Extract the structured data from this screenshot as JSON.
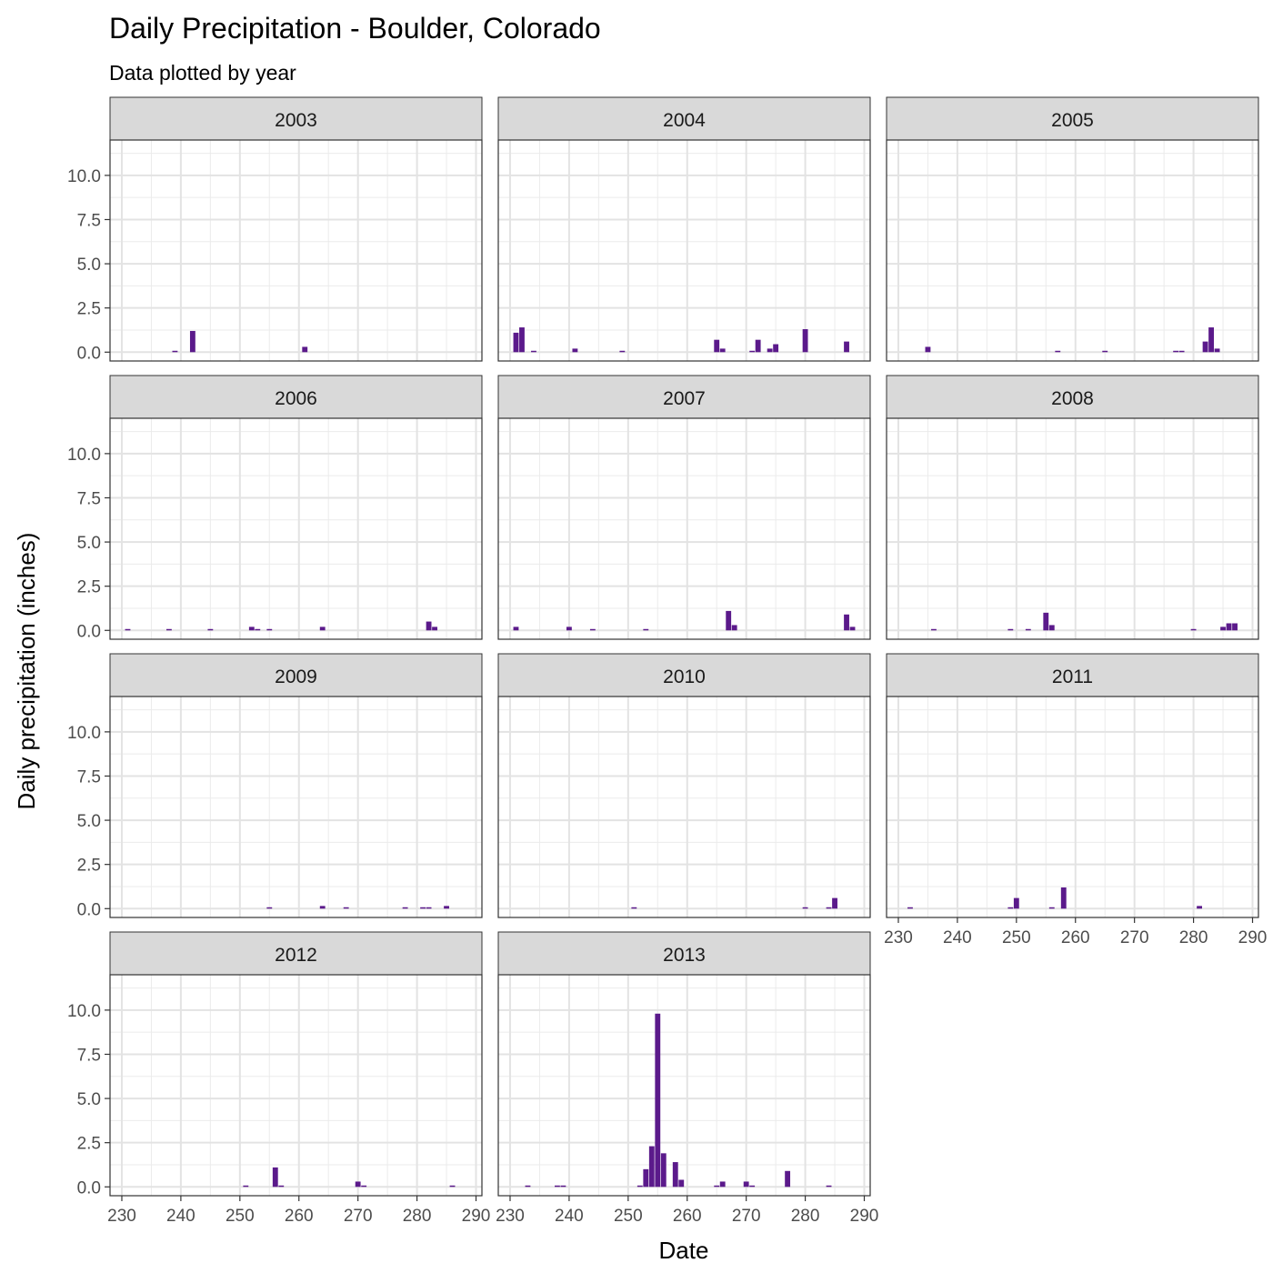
{
  "chart_data": {
    "type": "bar",
    "title": "Daily Precipitation - Boulder, Colorado",
    "subtitle": "Data plotted by year",
    "xlabel": "Date",
    "ylabel": "Daily precipitation (inches)",
    "xlim": [
      228,
      291
    ],
    "ylim": [
      -0.5,
      12
    ],
    "x_ticks": [
      230,
      240,
      250,
      260,
      270,
      280,
      290
    ],
    "y_ticks": [
      0.0,
      2.5,
      5.0,
      7.5,
      10.0
    ],
    "y_tick_labels": [
      "0.0",
      "2.5",
      "5.0",
      "7.5",
      "10.0"
    ],
    "grid": true,
    "facet_columns": 3,
    "bar_color": "#5b1a8b",
    "facets": [
      {
        "name": "2003",
        "bars": [
          [
            239,
            0.05
          ],
          [
            242,
            1.2
          ],
          [
            261,
            0.3
          ]
        ]
      },
      {
        "name": "2004",
        "bars": [
          [
            231,
            1.1
          ],
          [
            232,
            1.4
          ],
          [
            234,
            0.05
          ],
          [
            241,
            0.2
          ],
          [
            249,
            0.05
          ],
          [
            265,
            0.7
          ],
          [
            266,
            0.2
          ],
          [
            271,
            0.05
          ],
          [
            272,
            0.7
          ],
          [
            274,
            0.2
          ],
          [
            275,
            0.45
          ],
          [
            280,
            1.3
          ],
          [
            287,
            0.6
          ]
        ]
      },
      {
        "name": "2005",
        "bars": [
          [
            235,
            0.3
          ],
          [
            257,
            0.05
          ],
          [
            265,
            0.05
          ],
          [
            277,
            0.05
          ],
          [
            278,
            0.05
          ],
          [
            282,
            0.6
          ],
          [
            283,
            1.4
          ],
          [
            284,
            0.2
          ]
        ]
      },
      {
        "name": "2006",
        "bars": [
          [
            231,
            0.05
          ],
          [
            238,
            0.05
          ],
          [
            245,
            0.05
          ],
          [
            252,
            0.2
          ],
          [
            253,
            0.05
          ],
          [
            255,
            0.05
          ],
          [
            264,
            0.2
          ],
          [
            282,
            0.5
          ],
          [
            283,
            0.2
          ]
        ]
      },
      {
        "name": "2007",
        "bars": [
          [
            231,
            0.2
          ],
          [
            240,
            0.2
          ],
          [
            244,
            0.05
          ],
          [
            253,
            0.05
          ],
          [
            267,
            1.1
          ],
          [
            268,
            0.3
          ],
          [
            287,
            0.9
          ],
          [
            288,
            0.2
          ]
        ]
      },
      {
        "name": "2008",
        "bars": [
          [
            236,
            0.05
          ],
          [
            249,
            0.05
          ],
          [
            252,
            0.05
          ],
          [
            255,
            1.0
          ],
          [
            256,
            0.3
          ],
          [
            280,
            0.05
          ],
          [
            285,
            0.2
          ],
          [
            286,
            0.4
          ],
          [
            287,
            0.4
          ]
        ]
      },
      {
        "name": "2009",
        "bars": [
          [
            255,
            0.05
          ],
          [
            264,
            0.15
          ],
          [
            268,
            0.05
          ],
          [
            278,
            0.05
          ],
          [
            281,
            0.05
          ],
          [
            282,
            0.05
          ],
          [
            285,
            0.15
          ]
        ]
      },
      {
        "name": "2010",
        "bars": [
          [
            251,
            0.05
          ],
          [
            280,
            0.05
          ],
          [
            284,
            0.05
          ],
          [
            285,
            0.6
          ]
        ]
      },
      {
        "name": "2011",
        "bars": [
          [
            232,
            0.05
          ],
          [
            249,
            0.05
          ],
          [
            250,
            0.6
          ],
          [
            256,
            0.05
          ],
          [
            258,
            1.2
          ],
          [
            281,
            0.15
          ]
        ]
      },
      {
        "name": "2012",
        "bars": [
          [
            251,
            0.05
          ],
          [
            256,
            1.1
          ],
          [
            257,
            0.05
          ],
          [
            270,
            0.3
          ],
          [
            271,
            0.05
          ],
          [
            286,
            0.05
          ]
        ]
      },
      {
        "name": "2013",
        "bars": [
          [
            233,
            0.05
          ],
          [
            238,
            0.05
          ],
          [
            239,
            0.05
          ],
          [
            252,
            0.05
          ],
          [
            253,
            1.0
          ],
          [
            254,
            2.3
          ],
          [
            255,
            9.8
          ],
          [
            256,
            1.9
          ],
          [
            258,
            1.4
          ],
          [
            259,
            0.4
          ],
          [
            265,
            0.05
          ],
          [
            266,
            0.3
          ],
          [
            270,
            0.3
          ],
          [
            271,
            0.05
          ],
          [
            277,
            0.9
          ],
          [
            284,
            0.05
          ]
        ]
      }
    ]
  }
}
